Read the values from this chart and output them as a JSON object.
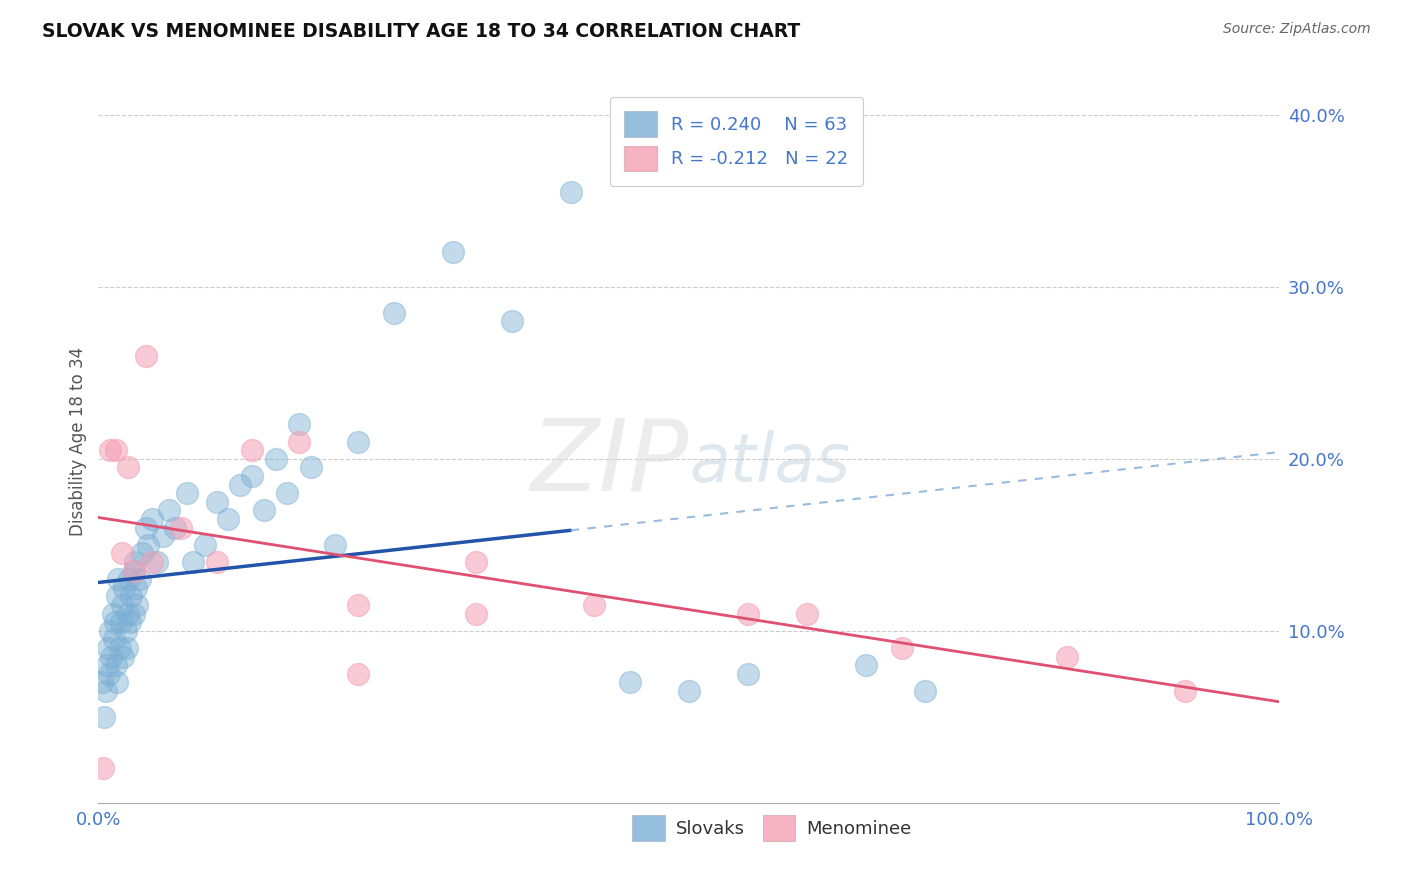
{
  "title": "SLOVAK VS MENOMINEE DISABILITY AGE 18 TO 34 CORRELATION CHART",
  "source": "Source: ZipAtlas.com",
  "ylabel": "Disability Age 18 to 34",
  "color_slovak": "#7BAFD4",
  "color_menominee": "#F4A0B5",
  "color_trend_slovak_solid": "#2255AA",
  "color_trend_slovak_dash": "#99BBDD",
  "color_trend_menominee": "#E05070",
  "background_color": "#FFFFFF",
  "xlim": [
    0.0,
    100.0
  ],
  "ylim": [
    0.0,
    42.0
  ],
  "grid_color": "#CCCCCC",
  "tick_color": "#4477CC",
  "watermark_color": "#DDDDDD",
  "slovak_r": 0.24,
  "slovak_n": 63,
  "menominee_r": -0.212,
  "menominee_n": 22,
  "trend_solid_end_x": 40.0,
  "trend_dash_start_x": 40.0,
  "trend_dash_end_x": 100.0,
  "slovak_x": [
    0.3,
    0.5,
    0.6,
    0.7,
    0.8,
    0.9,
    1.0,
    1.1,
    1.2,
    1.3,
    1.4,
    1.5,
    1.6,
    1.6,
    1.7,
    1.8,
    1.9,
    2.0,
    2.1,
    2.2,
    2.3,
    2.4,
    2.5,
    2.6,
    2.7,
    2.8,
    3.0,
    3.0,
    3.1,
    3.2,
    3.3,
    3.5,
    3.7,
    4.0,
    4.2,
    4.5,
    5.0,
    5.5,
    6.0,
    6.5,
    7.5,
    8.0,
    9.0,
    10.0,
    11.0,
    12.0,
    13.0,
    14.0,
    15.0,
    16.0,
    17.0,
    18.0,
    20.0,
    22.0,
    25.0,
    30.0,
    35.0,
    40.0,
    45.0,
    50.0,
    55.0,
    65.0,
    70.0
  ],
  "slovak_y": [
    7.0,
    5.0,
    6.5,
    8.0,
    9.0,
    7.5,
    10.0,
    8.5,
    11.0,
    9.5,
    10.5,
    8.0,
    12.0,
    7.0,
    13.0,
    9.0,
    10.5,
    11.5,
    8.5,
    12.5,
    10.0,
    9.0,
    11.0,
    13.0,
    10.5,
    12.0,
    13.5,
    11.0,
    14.0,
    12.5,
    11.5,
    13.0,
    14.5,
    16.0,
    15.0,
    16.5,
    14.0,
    15.5,
    17.0,
    16.0,
    18.0,
    14.0,
    15.0,
    17.5,
    16.5,
    18.5,
    19.0,
    17.0,
    20.0,
    18.0,
    22.0,
    19.5,
    15.0,
    21.0,
    28.5,
    32.0,
    28.0,
    35.5,
    7.0,
    6.5,
    7.5,
    8.0,
    6.5
  ],
  "menominee_x": [
    0.4,
    1.0,
    1.5,
    2.0,
    2.5,
    3.0,
    4.0,
    4.5,
    7.0,
    10.0,
    13.0,
    17.0,
    22.0,
    32.0,
    42.0,
    55.0,
    60.0,
    68.0,
    82.0,
    92.0,
    22.0,
    32.0
  ],
  "menominee_y": [
    2.0,
    20.5,
    20.5,
    14.5,
    19.5,
    13.5,
    26.0,
    14.0,
    16.0,
    14.0,
    20.5,
    21.0,
    11.5,
    11.0,
    11.5,
    11.0,
    11.0,
    9.0,
    8.5,
    6.5,
    7.5,
    14.0
  ]
}
